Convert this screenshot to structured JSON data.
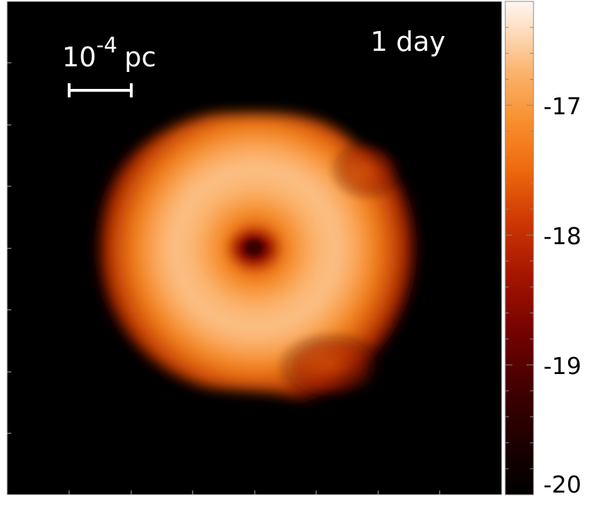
{
  "figure": {
    "time_label": "1 day",
    "scale_bar": {
      "base": "10",
      "exponent": "-4",
      "unit": "pc"
    }
  },
  "colorbar": {
    "ticks": [
      {
        "value": -17,
        "label": "-17"
      },
      {
        "value": -18,
        "label": "-18"
      },
      {
        "value": -19,
        "label": "-19"
      },
      {
        "value": -20,
        "label": "-20"
      }
    ],
    "range": [
      -20,
      -16.2
    ],
    "colormap_stops": [
      "#000000",
      "#3a0000",
      "#8a0a00",
      "#c02800",
      "#f07a14",
      "#fbb06a",
      "#fff4ec"
    ]
  }
}
